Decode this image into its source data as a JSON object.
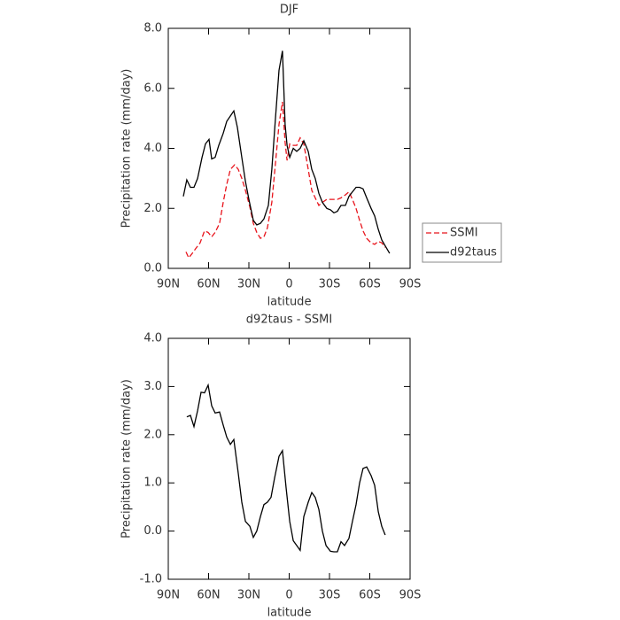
{
  "chart_data": [
    {
      "type": "line",
      "title": "DJF",
      "xlabel": "latitude",
      "ylabel": "Precipitation rate (mm/day)",
      "xlim": [
        90,
        -90
      ],
      "xticks": [
        {
          "value": 90,
          "label": "90N"
        },
        {
          "value": 60,
          "label": "60N"
        },
        {
          "value": 30,
          "label": "30N"
        },
        0,
        {
          "value": -30,
          "label": "30S"
        },
        {
          "value": -60,
          "label": "60S"
        },
        {
          "value": -90,
          "label": "90S"
        }
      ],
      "ylim": [
        0,
        8
      ],
      "yticks": [
        {
          "value": 0,
          "label": "0.0"
        },
        {
          "value": 2,
          "label": "2.0"
        },
        {
          "value": 4,
          "label": "4.0"
        },
        {
          "value": 6,
          "label": "6.0"
        },
        {
          "value": 8,
          "label": "8.0"
        }
      ],
      "legend": "outside-right",
      "series": [
        {
          "name": "SSMI",
          "color": "#e8141c",
          "linestyle": "dashed",
          "x": [
            76.8,
            74.8,
            72.2,
            68.9,
            66.3,
            63.0,
            60.3,
            57.7,
            55.1,
            51.8,
            49.1,
            46.5,
            43.8,
            40.6,
            37.9,
            35.3,
            32.6,
            29.3,
            26.7,
            24.1,
            21.4,
            18.8,
            16.2,
            12.9,
            10.2,
            7.6,
            5.0,
            3.0,
            1.6,
            -0.4,
            -3.0,
            -5.6,
            -8.2,
            -10.9,
            -14.2,
            -16.8,
            -19.4,
            -22.1,
            -24.7,
            -28.0,
            -30.7,
            -33.3,
            -35.9,
            -38.6,
            -41.9,
            -44.5,
            -47.1,
            -49.8,
            -52.4,
            -55.0,
            -57.7,
            -61.0,
            -63.6,
            -66.3,
            -68.9,
            -71.5
          ],
          "values": [
            0.55,
            0.35,
            0.5,
            0.7,
            0.85,
            1.25,
            1.2,
            1.05,
            1.2,
            1.5,
            2.2,
            2.8,
            3.3,
            3.45,
            3.3,
            3.0,
            2.6,
            2.05,
            1.5,
            1.2,
            1.0,
            1.05,
            1.35,
            2.2,
            3.5,
            4.8,
            5.55,
            4.2,
            3.6,
            4.15,
            4.1,
            4.1,
            4.35,
            4.15,
            3.3,
            2.6,
            2.35,
            2.1,
            2.2,
            2.3,
            2.3,
            2.3,
            2.3,
            2.35,
            2.45,
            2.55,
            2.3,
            2.0,
            1.6,
            1.25,
            1.0,
            0.85,
            0.8,
            0.9,
            0.85,
            0.7
          ]
        },
        {
          "name": "d92taus",
          "color": "#000000",
          "linestyle": "solid",
          "x": [
            78.8,
            76.2,
            73.5,
            70.9,
            68.2,
            64.9,
            62.3,
            59.7,
            57.7,
            55.1,
            52.4,
            49.1,
            46.5,
            41.2,
            38.6,
            35.3,
            32.6,
            30.0,
            26.7,
            24.1,
            21.4,
            18.8,
            15.5,
            12.9,
            10.2,
            7.6,
            5.0,
            3.0,
            1.6,
            -0.4,
            -3.0,
            -5.6,
            -8.2,
            -10.9,
            -14.2,
            -16.8,
            -19.4,
            -22.1,
            -24.7,
            -28.0,
            -30.7,
            -33.3,
            -35.9,
            -38.6,
            -41.9,
            -44.5,
            -47.1,
            -49.8,
            -52.4,
            -55.0,
            -57.7,
            -61.0,
            -63.6,
            -66.3,
            -68.9,
            -71.5,
            -74.8
          ],
          "values": [
            2.4,
            2.95,
            2.7,
            2.7,
            3.0,
            3.7,
            4.15,
            4.3,
            3.65,
            3.7,
            4.1,
            4.5,
            4.9,
            5.25,
            4.7,
            3.7,
            2.9,
            2.3,
            1.6,
            1.45,
            1.5,
            1.65,
            2.1,
            3.3,
            5.0,
            6.6,
            7.25,
            4.8,
            4.1,
            3.7,
            4.0,
            3.9,
            4.0,
            4.25,
            3.9,
            3.3,
            3.0,
            2.5,
            2.2,
            2.0,
            1.95,
            1.85,
            1.9,
            2.1,
            2.1,
            2.4,
            2.55,
            2.7,
            2.7,
            2.65,
            2.35,
            2.0,
            1.75,
            1.3,
            0.95,
            0.75,
            0.5
          ]
        }
      ]
    },
    {
      "type": "line",
      "title": "d92taus - SSMI",
      "xlabel": "latitude",
      "ylabel": "Precipitation rate (mm/day)",
      "xlim": [
        90,
        -90
      ],
      "xticks": [
        {
          "value": 90,
          "label": "90N"
        },
        {
          "value": 60,
          "label": "60N"
        },
        {
          "value": 30,
          "label": "30N"
        },
        0,
        {
          "value": -30,
          "label": "30S"
        },
        {
          "value": -60,
          "label": "60S"
        },
        {
          "value": -90,
          "label": "90S"
        }
      ],
      "ylim": [
        -1,
        4
      ],
      "yticks": [
        {
          "value": -1,
          "label": "-1.0"
        },
        {
          "value": 0,
          "label": "0.0"
        },
        {
          "value": 1,
          "label": "1.0"
        },
        {
          "value": 2,
          "label": "2.0"
        },
        {
          "value": 3,
          "label": "3.0"
        },
        {
          "value": 4,
          "label": "4.0"
        }
      ],
      "series": [
        {
          "color": "#000000",
          "linestyle": "solid",
          "x": [
            76.2,
            73.5,
            70.9,
            68.2,
            65.6,
            63.0,
            60.3,
            57.7,
            55.1,
            51.8,
            49.1,
            46.5,
            43.8,
            41.2,
            37.9,
            35.3,
            32.6,
            29.3,
            26.7,
            24.1,
            21.4,
            18.8,
            16.2,
            13.5,
            10.9,
            7.6,
            5.0,
            2.3,
            -0.4,
            -3.0,
            -5.6,
            -8.2,
            -10.9,
            -14.2,
            -16.8,
            -19.4,
            -22.1,
            -24.7,
            -27.4,
            -30.7,
            -33.3,
            -35.9,
            -38.6,
            -41.2,
            -44.5,
            -47.1,
            -49.8,
            -52.4,
            -55.0,
            -57.7,
            -61.0,
            -63.6,
            -66.3,
            -68.9,
            -71.5
          ],
          "values": [
            2.37,
            2.4,
            2.17,
            2.5,
            2.88,
            2.87,
            3.03,
            2.6,
            2.45,
            2.47,
            2.2,
            1.95,
            1.8,
            1.9,
            1.2,
            0.6,
            0.2,
            0.1,
            -0.13,
            0.0,
            0.3,
            0.55,
            0.6,
            0.7,
            1.1,
            1.55,
            1.67,
            0.9,
            0.2,
            -0.2,
            -0.3,
            -0.4,
            0.3,
            0.6,
            0.8,
            0.7,
            0.45,
            0.0,
            -0.3,
            -0.42,
            -0.43,
            -0.43,
            -0.22,
            -0.3,
            -0.15,
            0.2,
            0.55,
            1.0,
            1.3,
            1.33,
            1.15,
            0.95,
            0.4,
            0.1,
            -0.08
          ]
        }
      ]
    }
  ]
}
